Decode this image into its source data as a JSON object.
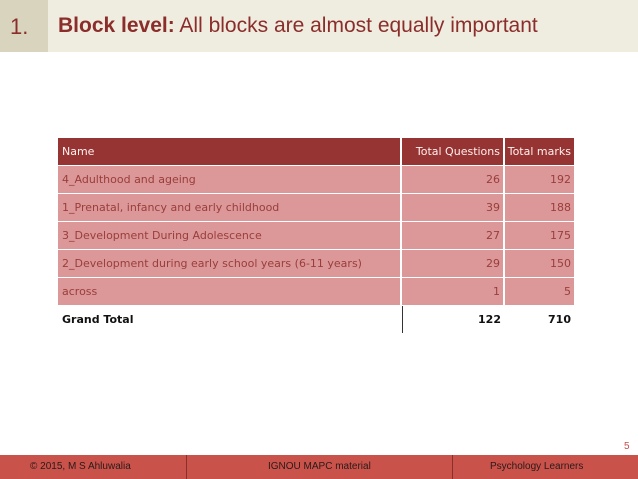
{
  "slide": {
    "number": "1.",
    "title_bold": "Block level:",
    "title_rest": " All blocks are almost equally important",
    "page_number": "5"
  },
  "table": {
    "headers": [
      "Name",
      "Total Questions",
      "Total marks"
    ],
    "rows": [
      [
        "4_Adulthood and ageing",
        "26",
        "192"
      ],
      [
        "1_Prenatal, infancy and early childhood",
        "39",
        "188"
      ],
      [
        "3_Development During Adolescence",
        "27",
        "175"
      ],
      [
        "2_Development during early school years (6-11 years)",
        "29",
        "150"
      ],
      [
        "across",
        "1",
        "5"
      ]
    ],
    "total": [
      "Grand Total",
      "122",
      "710"
    ]
  },
  "footer": {
    "left": "© 2015, M S Ahluwalia",
    "center": "IGNOU MAPC material",
    "right": "Psychology Learners"
  },
  "colors": {
    "title": "#8b2e2b",
    "header_fill": "#963433",
    "row_fill": "#dc9898",
    "footer_fill": "#c9524a"
  }
}
